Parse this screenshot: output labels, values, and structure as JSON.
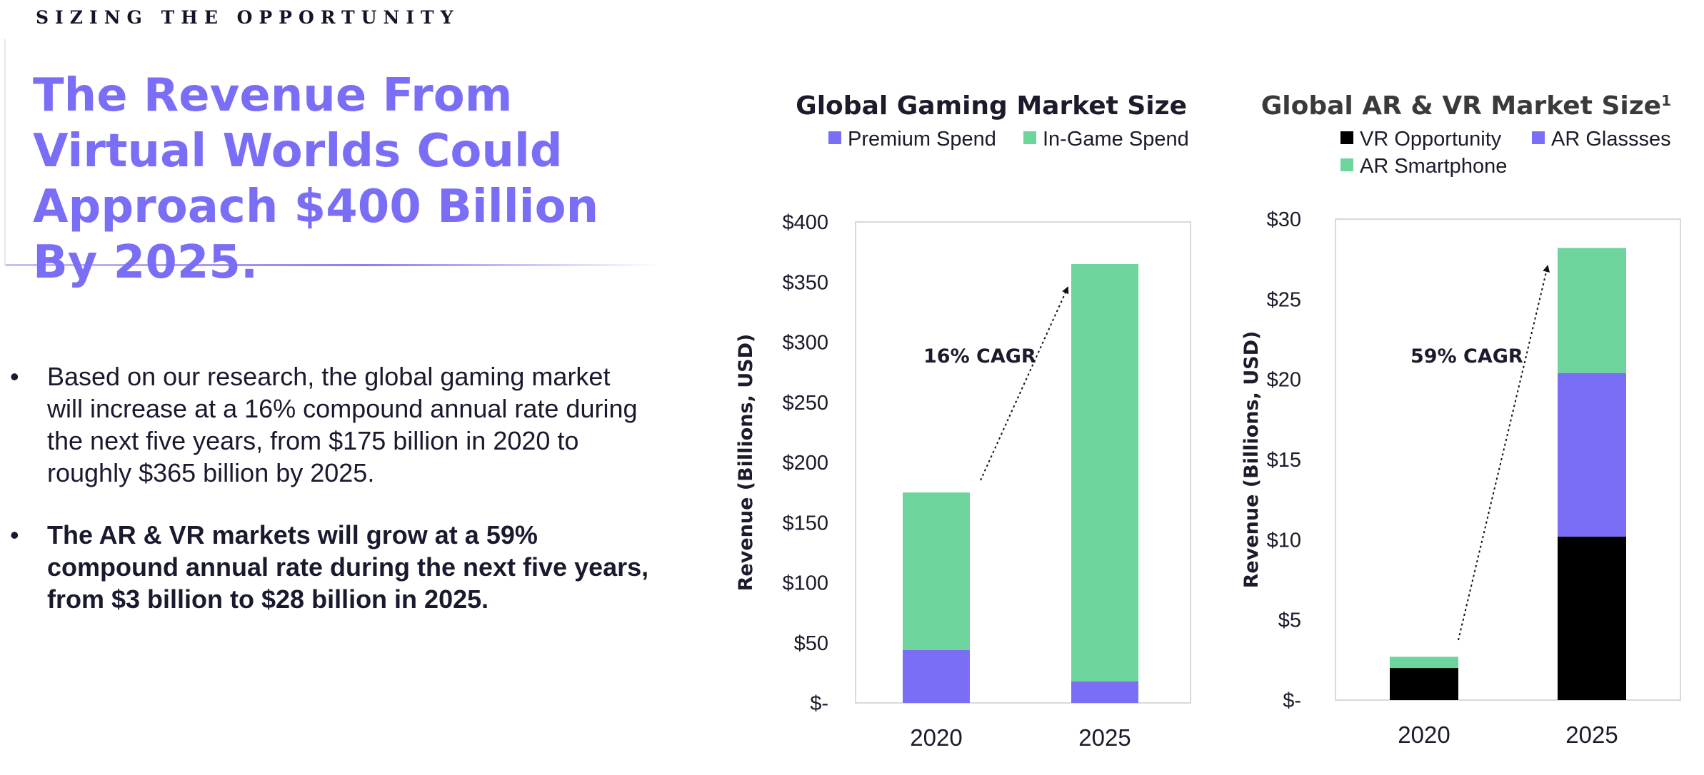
{
  "slide": {
    "eyebrow": "SIZING THE OPPORTUNITY",
    "headline": "The Revenue From Virtual Worlds Could Approach $400 Billion By 2025.",
    "bullets": [
      "Based on our research, the global gaming market will increase at a 16% compound annual rate during the next five years, from $175 billion in 2020 to roughly $365 billion by 2025.",
      "The AR & VR markets will grow at a 59% compound annual rate during the next five years, from $3 billion to $28 billion in 2025."
    ],
    "bullet_symbol": "•"
  },
  "colors": {
    "purple": "#7b6ef6",
    "green": "#6dd59c",
    "black": "#000000",
    "headline": "#7b6ef6"
  },
  "chart_data": [
    {
      "type": "bar",
      "stacked": true,
      "title": "Global Gaming Market Size",
      "title_sup": "",
      "ylabel": "Revenue (Billions, USD)",
      "categories": [
        "2020",
        "2025"
      ],
      "ylim": [
        0,
        400
      ],
      "yticks": [
        0,
        50,
        100,
        150,
        200,
        250,
        300,
        350,
        400
      ],
      "ytick_labels": [
        "$-",
        "$50",
        "$100",
        "$150",
        "$200",
        "$250",
        "$300",
        "$350",
        "$400"
      ],
      "series": [
        {
          "name": "Premium Spend",
          "color": "#7b6ef6",
          "values": [
            44,
            18
          ]
        },
        {
          "name": "In-Game Spend",
          "color": "#6dd59c",
          "values": [
            131,
            347
          ]
        }
      ],
      "legend_position": "top",
      "grid": false,
      "annotation": "16% CAGR"
    },
    {
      "type": "bar",
      "stacked": true,
      "title": "Global AR & VR Market Size",
      "title_sup": "1",
      "ylabel": "Revenue (Billions, USD)",
      "categories": [
        "2020",
        "2025"
      ],
      "ylim": [
        0,
        30
      ],
      "yticks": [
        0,
        5,
        10,
        15,
        20,
        25,
        30
      ],
      "ytick_labels": [
        "$-",
        "$5",
        "$10",
        "$15",
        "$20",
        "$25",
        "$30"
      ],
      "series": [
        {
          "name": "VR Opportunity",
          "color": "#000000",
          "values": [
            2.0,
            10.2
          ]
        },
        {
          "name": "AR Glassses",
          "color": "#7b6ef6",
          "values": [
            0.0,
            10.2
          ]
        },
        {
          "name": "AR Smartphone",
          "color": "#6dd59c",
          "values": [
            0.7,
            7.8
          ]
        }
      ],
      "legend_position": "top",
      "grid": false,
      "annotation": "59% CAGR"
    }
  ]
}
